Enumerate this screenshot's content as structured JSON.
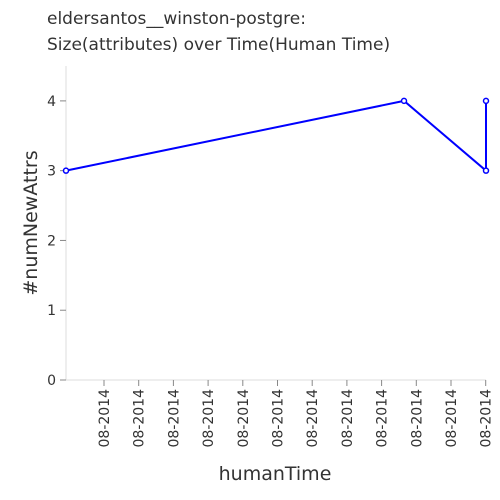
{
  "chart_data": {
    "type": "line",
    "title": [
      "eldersantos__winston-postgre:",
      "Size(attributes) over Time(Human Time)"
    ],
    "xlabel": "humanTime",
    "ylabel": "#numNewAttrs",
    "ylim": [
      0,
      4.5
    ],
    "y_ticks": [
      0,
      1,
      2,
      3,
      4
    ],
    "x_tick_labels": [
      "08-2014",
      "08-2014",
      "08-2014",
      "08-2014",
      "08-2014",
      "08-2014",
      "08-2014",
      "08-2014",
      "08-2014",
      "08-2014",
      "08-2014",
      "08-2014"
    ],
    "x_range": [
      0,
      1
    ],
    "series": [
      {
        "color": "#0000ff",
        "x": [
          0.0,
          0.8048,
          1.0,
          1.0
        ],
        "y": [
          3,
          4,
          3,
          4
        ]
      }
    ],
    "grid": false
  }
}
